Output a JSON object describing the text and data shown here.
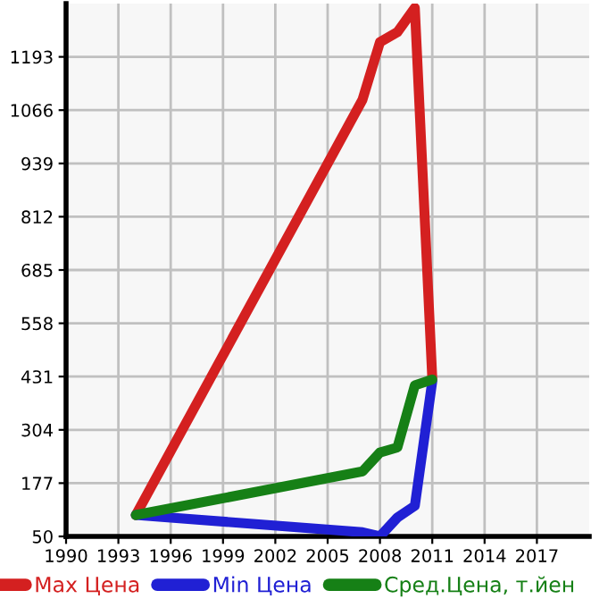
{
  "chart_data": {
    "type": "line",
    "x": [
      1994,
      2007,
      2008,
      2009,
      2010,
      2011
    ],
    "series": [
      {
        "name": "Max Цена",
        "color": "#d42020",
        "values": [
          101,
          1091,
          1228,
          1252,
          1310,
          427
        ]
      },
      {
        "name": "Min Цена",
        "color": "#2020d4",
        "values": [
          101,
          60,
          50,
          95,
          123,
          420
        ]
      },
      {
        "name": "Сред.Цена, т.йен",
        "color": "#168016",
        "values": [
          101,
          205,
          250,
          262,
          410,
          424
        ]
      }
    ],
    "xlim": [
      1990,
      2020
    ],
    "xticks": [
      1990,
      1993,
      1996,
      1999,
      2002,
      2005,
      2008,
      2011,
      2014,
      2017
    ],
    "ylim": [
      50,
      1320
    ],
    "yticks": [
      50,
      177,
      304,
      431,
      558,
      685,
      812,
      939,
      1066,
      1193
    ],
    "grid": true,
    "legend": "bottom",
    "marker": "none",
    "line_style": "solid"
  }
}
